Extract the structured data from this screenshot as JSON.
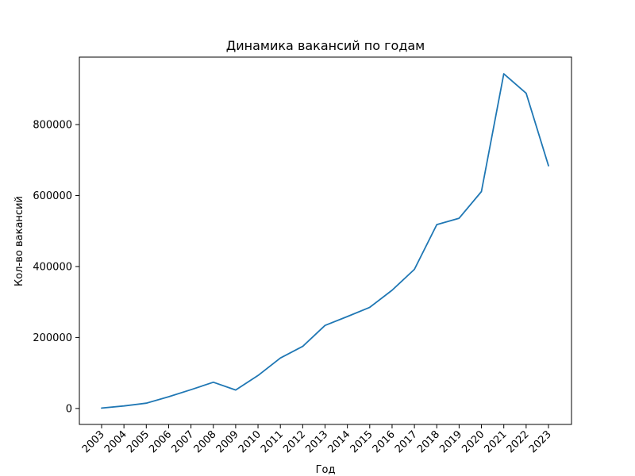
{
  "chart_data": {
    "type": "line",
    "title": "Динамика вакансий по годам",
    "xlabel": "Год",
    "ylabel": "Кол-во вакансий",
    "x": [
      "2003",
      "2004",
      "2005",
      "2006",
      "2007",
      "2008",
      "2009",
      "2010",
      "2011",
      "2012",
      "2013",
      "2014",
      "2015",
      "2016",
      "2017",
      "2018",
      "2019",
      "2020",
      "2021",
      "2022",
      "2023"
    ],
    "series": [
      {
        "name": "",
        "color": "#1f77b4",
        "values": [
          1000,
          7000,
          15000,
          33000,
          53000,
          74000,
          52000,
          93000,
          142000,
          175000,
          234000,
          259000,
          285000,
          333000,
          392000,
          518000,
          536000,
          611000,
          943000,
          888000,
          684000
        ]
      }
    ],
    "ylim": [
      -45000,
      990000
    ],
    "yticks": [
      0,
      200000,
      400000,
      600000,
      800000
    ],
    "ytick_labels": [
      "0",
      "200000",
      "400000",
      "600000",
      "800000"
    ],
    "grid": false,
    "legend": "none"
  }
}
